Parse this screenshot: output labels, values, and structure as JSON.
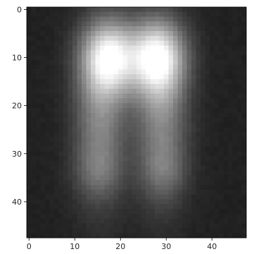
{
  "chart_data": {
    "type": "heatmap",
    "colormap": "gray",
    "grid": false,
    "xlim": [
      -0.5,
      47.5
    ],
    "ylim": [
      47.5,
      -0.5
    ],
    "x_ticks": [
      0,
      10,
      20,
      30,
      40
    ],
    "y_ticks": [
      0,
      10,
      20,
      30,
      40
    ],
    "x_tick_labels": [
      "0",
      "10",
      "20",
      "30",
      "40"
    ],
    "y_tick_labels": [
      "0",
      "10",
      "20",
      "30",
      "40"
    ],
    "grid_shape": [
      48,
      48
    ],
    "background_value": 0.13,
    "blobs": [
      {
        "cx": 17.5,
        "cy": 10,
        "sx": 4.2,
        "sy": 5.5,
        "amp": 0.78
      },
      {
        "cx": 28,
        "cy": 10,
        "sx": 4.2,
        "sy": 5.5,
        "amp": 0.8
      },
      {
        "cx": 15.5,
        "cy": 24,
        "sx": 4,
        "sy": 11,
        "amp": 0.38
      },
      {
        "cx": 29,
        "cy": 24,
        "sx": 4,
        "sy": 11,
        "amp": 0.38
      },
      {
        "cx": 15,
        "cy": 34,
        "sx": 3.5,
        "sy": 3.5,
        "amp": 0.12
      },
      {
        "cx": 29.5,
        "cy": 34,
        "sx": 3.5,
        "sy": 3.5,
        "amp": 0.12
      }
    ]
  }
}
